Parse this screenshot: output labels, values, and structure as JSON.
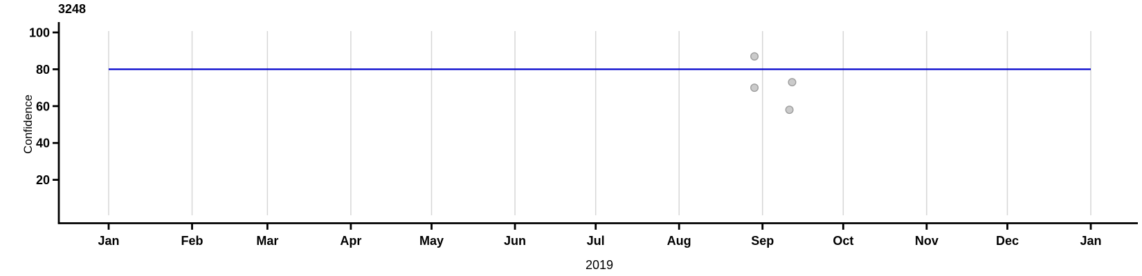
{
  "colors": {
    "background": "#ffffff",
    "axis": "#000000",
    "text": "#000000",
    "grid": "#d6d6d6",
    "reference_line": "#0000cc",
    "point_fill": "#cbcbcb",
    "point_stroke": "#9d9d9d"
  },
  "chart_data": {
    "type": "scatter",
    "title": "3248",
    "ylabel": "Confidence",
    "xlabel": "2019",
    "x_tick_labels": [
      "Jan",
      "Feb",
      "Mar",
      "Apr",
      "May",
      "Jun",
      "Jul",
      "Aug",
      "Sep",
      "Oct",
      "Nov",
      "Dec",
      "Jan"
    ],
    "x_range": [
      "2019-01-01",
      "2020-01-01"
    ],
    "y_tick_values": [
      20,
      40,
      60,
      80,
      100
    ],
    "ylim": [
      0,
      105
    ],
    "grid": "vertical-month-gridlines-only",
    "legend": "none",
    "reference_line": {
      "value": 80,
      "from": "2019-01-01",
      "to": "2020-01-01"
    },
    "points": [
      {
        "date": "2019-08-29",
        "confidence": 87
      },
      {
        "date": "2019-08-29",
        "confidence": 70
      },
      {
        "date": "2019-09-12",
        "confidence": 73
      },
      {
        "date": "2019-09-11",
        "confidence": 58
      }
    ]
  }
}
